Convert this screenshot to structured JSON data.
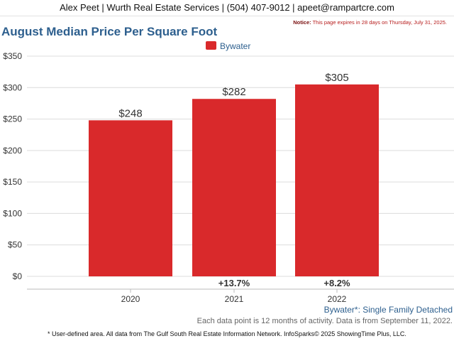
{
  "header": {
    "contact": "Alex Peet | Wurth Real Estate Services | (504) 407-9012 | apeet@rampartcre.com"
  },
  "notice": {
    "label": "Notice:",
    "text": "This page expires in 28 days on Thursday, July 31, 2025."
  },
  "colors": {
    "bar": "#d9292b",
    "title": "#2d5f8e",
    "grid": "#dcdcdc"
  },
  "chart_data": {
    "type": "bar",
    "title": "August Median Price Per Square Foot",
    "categories": [
      "2020",
      "2021",
      "2022"
    ],
    "series": [
      {
        "name": "Bywater",
        "values": [
          248,
          282,
          305
        ]
      }
    ],
    "value_labels": [
      "$248",
      "$282",
      "$305"
    ],
    "change_labels": [
      "",
      "+13.7%",
      "+8.2%"
    ],
    "y_ticks": [
      0,
      50,
      100,
      150,
      200,
      250,
      300,
      350
    ],
    "y_tick_labels": [
      "$0",
      "$50",
      "$100",
      "$150",
      "$200",
      "$250",
      "$300",
      "$350"
    ],
    "ylim": [
      0,
      350
    ],
    "grid": true,
    "legend": "top-center"
  },
  "footer": {
    "area_note": "Bywater*: Single Family Detached",
    "data_note": "Each data point is 12 months of activity. Data is from September 11, 2022.",
    "source_note": "* User-defined area. All data from The Gulf South Real Estate Information Network. InfoSparks© 2025 ShowingTime Plus, LLC."
  }
}
